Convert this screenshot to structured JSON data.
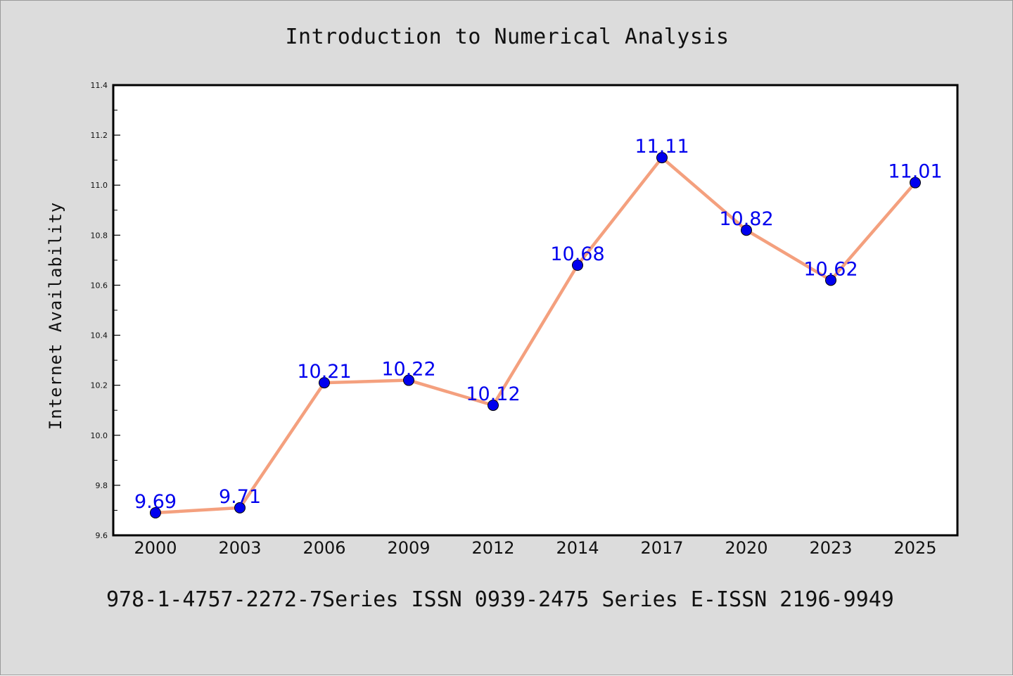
{
  "chart_data": {
    "type": "line",
    "title": "Introduction to Numerical Analysis",
    "ylabel": "Internet Availability",
    "xlabel": "",
    "categories": [
      "2000",
      "2003",
      "2006",
      "2009",
      "2012",
      "2014",
      "2017",
      "2020",
      "2023",
      "2025"
    ],
    "series": [
      {
        "values": [
          9.69,
          9.71,
          10.21,
          10.22,
          10.12,
          10.68,
          11.11,
          10.82,
          10.62,
          11.01
        ],
        "data_labels": [
          "9.69",
          "9.71",
          "10.21",
          "10.22",
          "10.12",
          "10.68",
          "11.11",
          "10.82",
          "10.62",
          "11.01"
        ]
      }
    ],
    "ylim": [
      9.6,
      11.4
    ],
    "y_ticks": [
      "9.6",
      "9.8",
      "10.0",
      "10.2",
      "10.4",
      "10.6",
      "10.8",
      "11.0",
      "11.2",
      "11.4"
    ],
    "grid": false,
    "legend": "none"
  },
  "footer_text": "978-1-4757-2272-7Series ISSN 0939-2475 Series E-ISSN 2196-9949",
  "colors": {
    "background": "#dcdcdc",
    "plot_area": "#ffffff",
    "line": "#f4a07e",
    "marker": "#0000ee",
    "data_label": "#0000ee",
    "axis": "#000000"
  }
}
